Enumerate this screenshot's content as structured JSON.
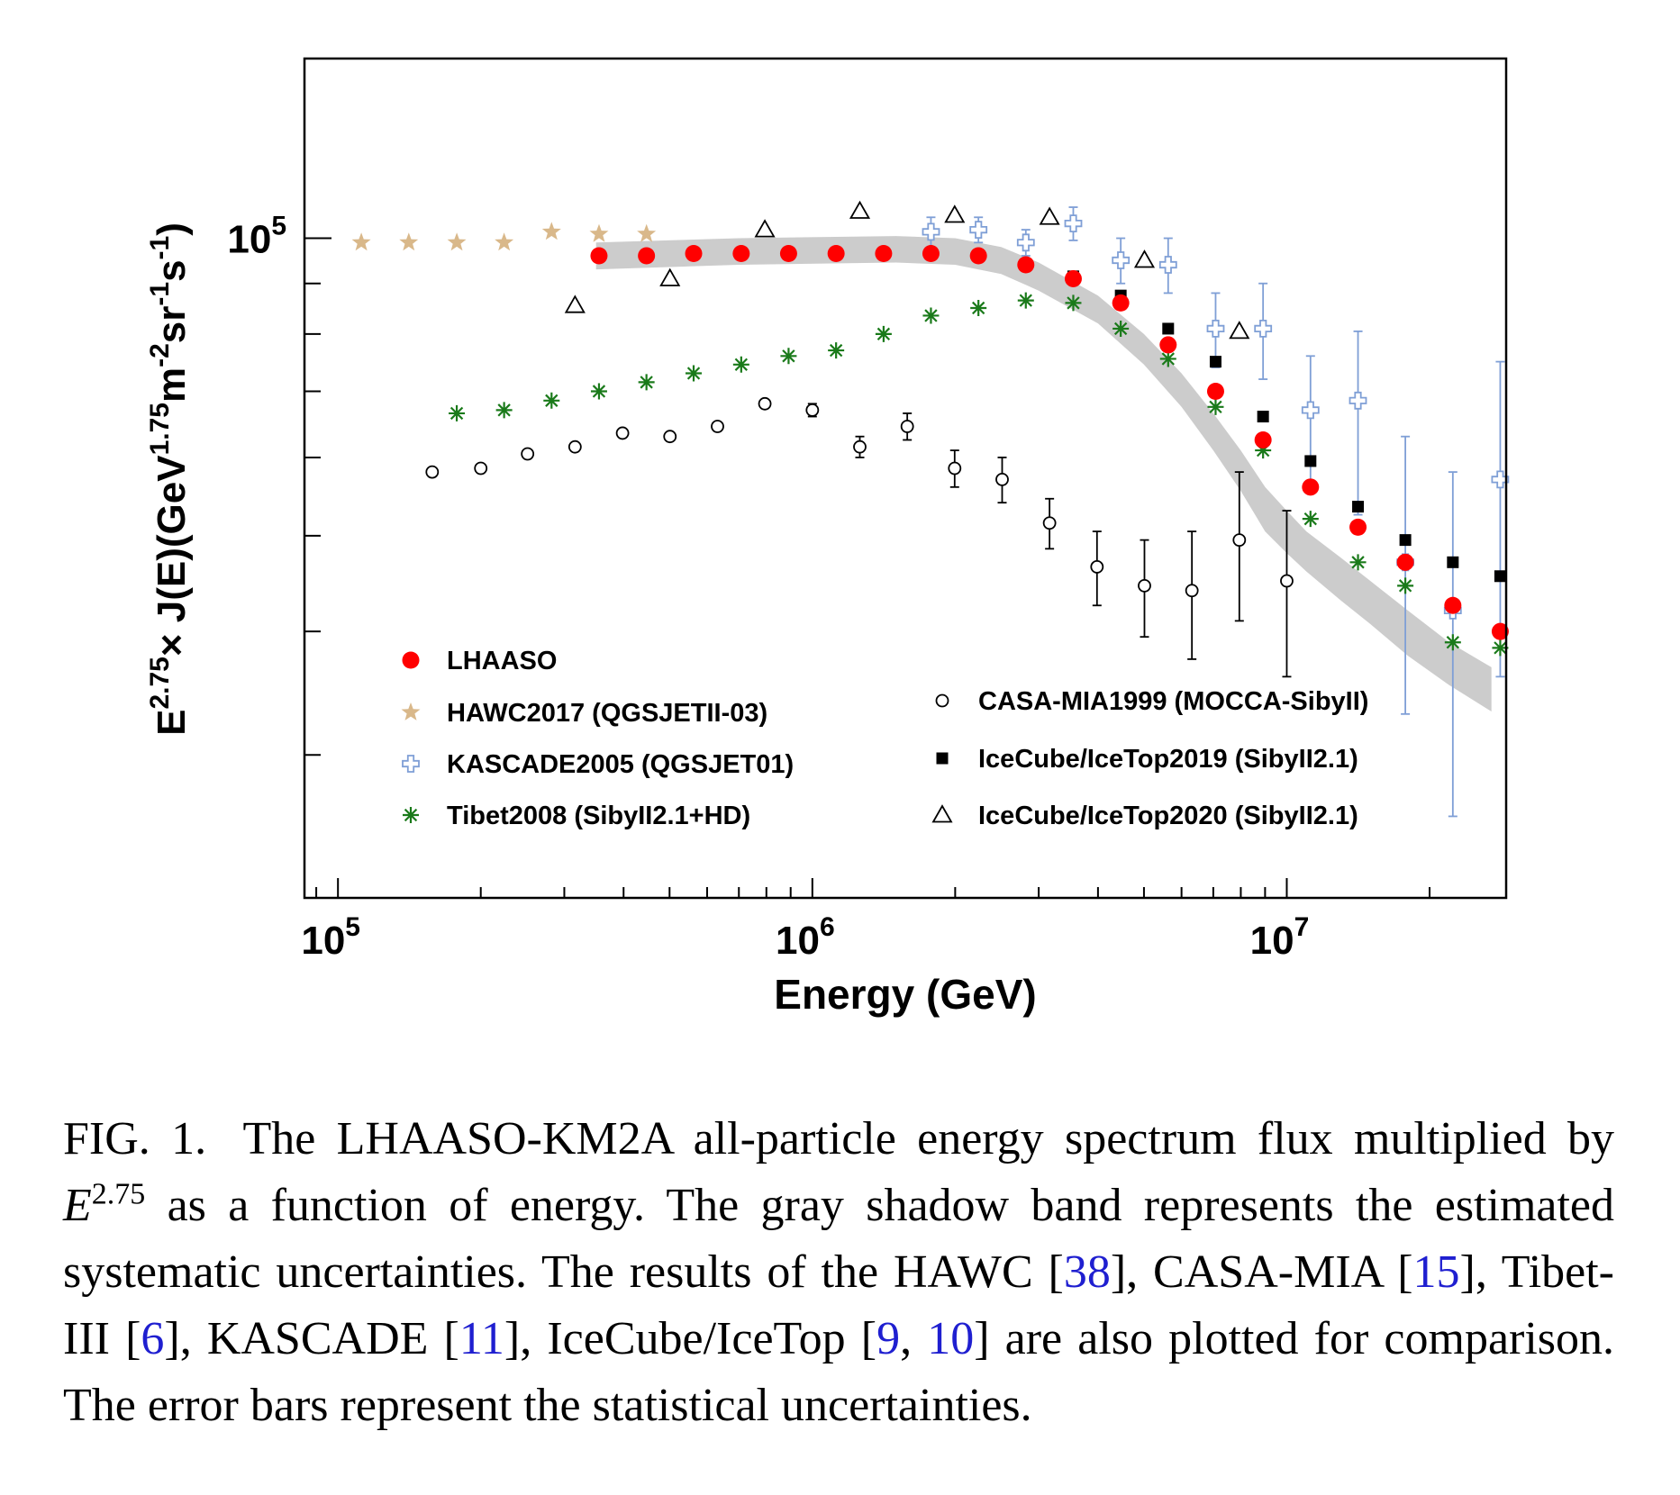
{
  "chart_data": {
    "type": "scatter",
    "xlabel": "Energy (GeV)",
    "ylabel": "E^{2.75} × J(E)(GeV^{1.75}m^{-2}sr^{-1}s^{-1})",
    "ylabel_parts": {
      "pre": "E",
      "sup1": "2.75",
      "mid": "× J(E)(GeV",
      "sup2": "1.75",
      "m": "m",
      "sup3": "-2",
      "sr": "sr",
      "sup4": "-1",
      "s": "s",
      "sup5": "-1",
      "end": ")"
    },
    "x_scale": "log",
    "y_scale": "log",
    "xlim": [
      85000,
      29000000
    ],
    "ylim": [
      21500,
      152000
    ],
    "x_ticks": [
      {
        "base": "10",
        "exp": "5",
        "value": 100000
      },
      {
        "base": "10",
        "exp": "6",
        "value": 1000000
      },
      {
        "base": "10",
        "exp": "7",
        "value": 10000000
      }
    ],
    "y_ticks": [
      {
        "base": "10",
        "exp": "5",
        "value": 100000
      }
    ],
    "grid": false,
    "legend_position": "bottom, two columns",
    "systematic_band": {
      "color": "#cccccc",
      "x": [
        350000,
        700000,
        1500000,
        2000000,
        2500000,
        3000000,
        4000000,
        5000000,
        6000000,
        7000000,
        8000000,
        9000000,
        10000000,
        11000000,
        13000000,
        15000000,
        18000000,
        22000000,
        27000000
      ],
      "y_low": [
        93000,
        94000,
        94500,
        94000,
        92000,
        88500,
        82000,
        74500,
        67500,
        61000,
        55500,
        50500,
        48000,
        46000,
        43000,
        40700,
        37800,
        35300,
        33200
      ],
      "y_high": [
        99000,
        100000,
        100500,
        100000,
        98000,
        94500,
        87500,
        80000,
        73000,
        66500,
        61000,
        56000,
        53000,
        50500,
        47500,
        45000,
        42000,
        39000,
        36800
      ]
    },
    "series": [
      {
        "name": "LHAASO",
        "marker": "filled-circle",
        "color": "#ff0000",
        "x": [
          355000,
          447000,
          562000,
          708000,
          891000,
          1122000,
          1413000,
          1778000,
          2239000,
          2818000,
          3548000,
          4467000,
          5623000,
          7079000,
          8913000,
          11220000,
          14130000,
          17780000,
          22390000,
          28180000
        ],
        "y": [
          96000,
          96000,
          96500,
          96500,
          96500,
          96500,
          96500,
          96500,
          96000,
          94000,
          91000,
          86000,
          78000,
          70000,
          62500,
          56000,
          51000,
          47000,
          42500,
          40000
        ]
      },
      {
        "name": "HAWC2017 (QGSJETII-03)",
        "marker": "star",
        "color": "#d9b88a",
        "x": [
          112000,
          141000,
          178000,
          224000,
          282000,
          355000,
          447000
        ],
        "y": [
          99000,
          99000,
          99000,
          99000,
          101500,
          101000,
          101000
        ]
      },
      {
        "name": "KASCADE2005 (QGSJET01)",
        "marker": "open-cross",
        "color": "#7f9fd6",
        "x": [
          1778000,
          2239000,
          2818000,
          3548000,
          4467000,
          5623000,
          7079000,
          8913000,
          11220000,
          14130000,
          17780000,
          22390000,
          28180000
        ],
        "y": [
          101500,
          102000,
          99000,
          103500,
          95000,
          94000,
          81000,
          81000,
          67000,
          68500,
          47000,
          42000,
          57000
        ],
        "err_low": [
          3500,
          3000,
          3000,
          4000,
          5000,
          6000,
          7000,
          9000,
          11000,
          16000,
          14000,
          16000,
          21000
        ],
        "err_high": [
          3500,
          3000,
          3000,
          4000,
          5000,
          6000,
          7000,
          9000,
          9000,
          12000,
          16000,
          16000,
          18000
        ]
      },
      {
        "name": "Tibet2008 (SibyII2.1+HD)",
        "marker": "asterisk",
        "color": "#1a7a1a",
        "x": [
          178000,
          224000,
          282000,
          355000,
          447000,
          562000,
          708000,
          891000,
          1122000,
          1413000,
          1778000,
          2239000,
          2818000,
          3548000,
          4467000,
          5623000,
          7079000,
          8913000,
          11220000,
          14130000,
          17780000,
          22390000,
          28180000
        ],
        "y": [
          66500,
          67000,
          68500,
          70000,
          71500,
          73000,
          74500,
          76000,
          77000,
          80000,
          83500,
          85000,
          86500,
          86000,
          81000,
          75500,
          67500,
          61000,
          52000,
          47000,
          44500,
          39000,
          38500
        ]
      },
      {
        "name": "CASA-MIA1999 (MOCCA-SibyII)",
        "marker": "open-circle",
        "color": "#000000",
        "x": [
          158000,
          200000,
          251000,
          316000,
          398000,
          501000,
          631000,
          794000,
          1000000,
          1259000,
          1585000,
          1995000,
          2512000,
          3162000,
          3981000,
          5012000,
          6310000,
          7943000,
          10000000
        ],
        "y": [
          58000,
          58500,
          60500,
          61500,
          63500,
          63000,
          64500,
          68000,
          67000,
          61500,
          64500,
          58500,
          57000,
          51500,
          46500,
          44500,
          44000,
          49500,
          45000
        ],
        "err_low": [
          0,
          0,
          0,
          0,
          0,
          0,
          0,
          0,
          1000,
          1500,
          2000,
          2500,
          3000,
          3000,
          4000,
          5000,
          6500,
          8500,
          9000
        ],
        "err_high": [
          0,
          0,
          0,
          0,
          0,
          0,
          0,
          0,
          1000,
          1500,
          2000,
          2500,
          3000,
          3000,
          4000,
          5000,
          6500,
          8500,
          8000
        ]
      },
      {
        "name": "IceCube/IceTop2019 (SibyII2.1)",
        "marker": "filled-square",
        "color": "#000000",
        "x": [
          3548000,
          4467000,
          5623000,
          7079000,
          8913000,
          11220000,
          14130000,
          17780000,
          22390000,
          28180000
        ],
        "y": [
          91500,
          87500,
          81000,
          75000,
          66000,
          59500,
          53500,
          49500,
          47000,
          45500
        ]
      },
      {
        "name": "IceCube/IceTop2020 (SibyII2.1)",
        "marker": "open-triangle",
        "color": "#000000",
        "x": [
          316000,
          501000,
          794000,
          1259000,
          1995000,
          3162000,
          5012000,
          7943000
        ],
        "y": [
          85500,
          91000,
          102000,
          106500,
          105500,
          105000,
          95000,
          80500
        ]
      }
    ]
  },
  "caption": {
    "label": "FIG. 1.",
    "text_1": "The LHAASO-KM2A all-particle energy spectrum flux multiplied by ",
    "math_base": "E",
    "math_exp": "2.75",
    "text_2": " as a function of energy. The gray shadow band represents the estimated systematic uncertainties. The results of the HAWC [",
    "ref_hawc": "38",
    "text_3": "], CASA-MIA [",
    "ref_casa": "15",
    "text_4": "], Tibet-III [",
    "ref_tibet": "6",
    "text_5": "], KASCADE [",
    "ref_kascade": "11",
    "text_6": "], IceCube/IceTop [",
    "ref_icecube_1": "9",
    "text_7": ", ",
    "ref_icecube_2": "10",
    "text_8": "] are also plotted for comparison. The error bars represent the statistical uncertainties."
  }
}
